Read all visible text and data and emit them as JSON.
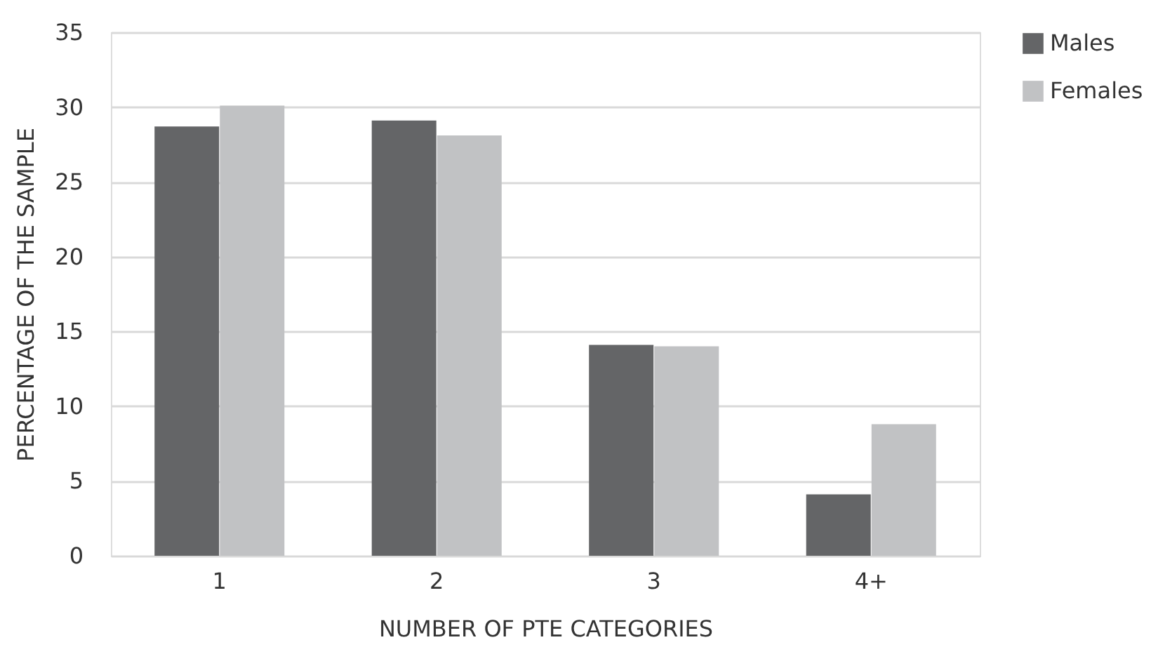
{
  "chart_data": {
    "type": "bar",
    "xlabel": "NUMBER OF PTE CATEGORIES",
    "ylabel": "PERCENTAGE OF THE SAMPLE",
    "categories": [
      "1",
      "2",
      "3",
      "4+"
    ],
    "series": [
      {
        "name": "Males",
        "color": "#646567",
        "values": [
          28.7,
          29.1,
          14.1,
          4.1
        ]
      },
      {
        "name": "Females",
        "color": "#c1c2c4",
        "values": [
          30.1,
          28.1,
          14.0,
          8.8
        ]
      }
    ],
    "ylim": [
      0,
      35
    ],
    "yticks": [
      0,
      5,
      10,
      15,
      20,
      25,
      30,
      35
    ],
    "grid": "y",
    "legend": "right"
  }
}
